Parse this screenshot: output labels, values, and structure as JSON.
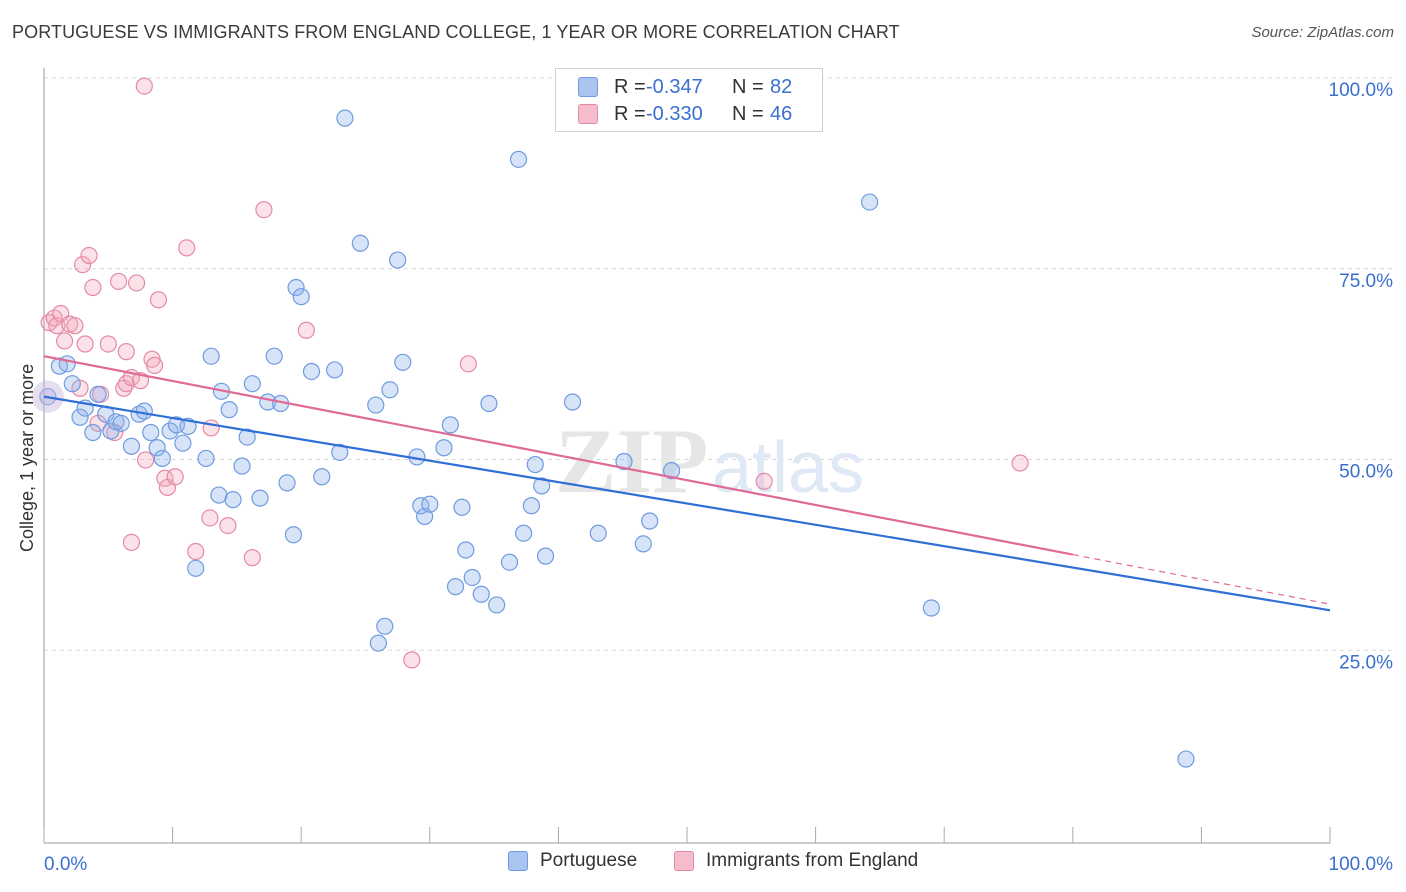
{
  "title": "PORTUGUESE VS IMMIGRANTS FROM ENGLAND COLLEGE, 1 YEAR OR MORE CORRELATION CHART",
  "source": "Source: ZipAtlas.com",
  "watermark": {
    "zip": "ZIP",
    "atlas": "atlas"
  },
  "legend_top": {
    "rows": [
      {
        "r_label": "R =",
        "r_value": "-0.347",
        "n_label": "N =",
        "n_value": "82",
        "color": "#a9c4ef",
        "stroke": "#6f9be0"
      },
      {
        "r_label": "R =",
        "r_value": "-0.330",
        "n_label": "N =",
        "n_value": "46",
        "color": "#f5bccb",
        "stroke": "#e58aa5"
      }
    ]
  },
  "legend_bottom": [
    {
      "label": "Portuguese",
      "color": "#a9c4ef",
      "stroke": "#6f9be0"
    },
    {
      "label": "Immigrants from England",
      "color": "#f5bccb",
      "stroke": "#e58aa5"
    }
  ],
  "colors": {
    "blue_fill": "rgba(140,178,236,0.35)",
    "blue_stroke": "#6f9be0",
    "blue_line": "#2f6fd6",
    "pink_fill": "rgba(244,170,190,0.35)",
    "pink_stroke": "#e58aa5",
    "pink_line": "#e06a95",
    "tick_label": "#3a6fd0",
    "grid": "#d8d8d8"
  },
  "chart_data": {
    "type": "scatter",
    "xlabel": "",
    "ylabel": "College, 1 year or more",
    "xlim": [
      0,
      100
    ],
    "ylim": [
      0,
      100
    ],
    "x_tick_labels": [
      "0.0%",
      "100.0%"
    ],
    "y_ticks": [
      {
        "value": 25,
        "label": "25.0%"
      },
      {
        "value": 50,
        "label": "50.0%"
      },
      {
        "value": 75,
        "label": "75.0%"
      },
      {
        "value": 100,
        "label": "100.0%"
      }
    ],
    "grid": "horizontal dashed",
    "series": [
      {
        "name": "Portuguese",
        "trend": {
          "x": [
            0,
            100
          ],
          "y": [
            58.5,
            30.5
          ],
          "dashed_from": null
        },
        "points": [
          [
            0.3,
            58.5
          ],
          [
            1.2,
            62.5
          ],
          [
            1.8,
            62.8
          ],
          [
            2.2,
            60.2
          ],
          [
            2.8,
            55.8
          ],
          [
            3.2,
            57.0
          ],
          [
            3.8,
            53.8
          ],
          [
            4.2,
            58.8
          ],
          [
            4.8,
            56.2
          ],
          [
            5.2,
            54.0
          ],
          [
            5.6,
            55.2
          ],
          [
            6.0,
            55.0
          ],
          [
            6.8,
            52.0
          ],
          [
            7.4,
            56.2
          ],
          [
            7.8,
            56.6
          ],
          [
            8.3,
            53.8
          ],
          [
            8.8,
            51.8
          ],
          [
            9.2,
            50.4
          ],
          [
            9.8,
            54.0
          ],
          [
            10.3,
            54.8
          ],
          [
            10.8,
            52.4
          ],
          [
            11.2,
            54.6
          ],
          [
            11.8,
            36.0
          ],
          [
            12.6,
            50.4
          ],
          [
            13.0,
            63.8
          ],
          [
            13.6,
            45.6
          ],
          [
            13.8,
            59.2
          ],
          [
            14.4,
            56.8
          ],
          [
            14.7,
            45.0
          ],
          [
            15.4,
            49.4
          ],
          [
            15.8,
            53.2
          ],
          [
            16.2,
            60.2
          ],
          [
            16.8,
            45.2
          ],
          [
            17.4,
            57.8
          ],
          [
            17.9,
            63.8
          ],
          [
            18.4,
            57.6
          ],
          [
            18.9,
            47.2
          ],
          [
            19.4,
            40.4
          ],
          [
            19.6,
            72.8
          ],
          [
            20.0,
            71.6
          ],
          [
            20.8,
            61.8
          ],
          [
            21.6,
            48.0
          ],
          [
            22.6,
            62.0
          ],
          [
            23.0,
            51.2
          ],
          [
            23.4,
            95.0
          ],
          [
            24.6,
            78.6
          ],
          [
            25.8,
            57.4
          ],
          [
            26.0,
            26.2
          ],
          [
            26.5,
            28.4
          ],
          [
            26.9,
            59.4
          ],
          [
            27.5,
            76.4
          ],
          [
            27.9,
            63.0
          ],
          [
            29.0,
            50.6
          ],
          [
            29.3,
            44.2
          ],
          [
            29.6,
            42.8
          ],
          [
            30.0,
            44.4
          ],
          [
            31.1,
            51.8
          ],
          [
            31.6,
            54.8
          ],
          [
            32.0,
            33.6
          ],
          [
            32.5,
            44.0
          ],
          [
            32.8,
            38.4
          ],
          [
            33.3,
            34.8
          ],
          [
            34.0,
            32.6
          ],
          [
            34.6,
            57.6
          ],
          [
            35.2,
            31.2
          ],
          [
            36.2,
            36.8
          ],
          [
            36.9,
            89.6
          ],
          [
            37.3,
            40.6
          ],
          [
            37.9,
            44.2
          ],
          [
            38.2,
            49.6
          ],
          [
            38.7,
            46.8
          ],
          [
            39.0,
            37.6
          ],
          [
            41.1,
            57.8
          ],
          [
            43.1,
            40.6
          ],
          [
            45.1,
            50.0
          ],
          [
            46.6,
            39.2
          ],
          [
            47.1,
            42.2
          ],
          [
            48.8,
            48.8
          ],
          [
            64.2,
            84.0
          ],
          [
            69.0,
            30.8
          ],
          [
            88.8,
            11.0
          ]
        ]
      },
      {
        "name": "Immigrants from England",
        "trend": {
          "x": [
            0,
            80
          ],
          "y": [
            63.8,
            37.8
          ],
          "dashed_to": [
            100,
            31.3
          ]
        },
        "points": [
          [
            0.4,
            68.2
          ],
          [
            0.8,
            68.8
          ],
          [
            1.0,
            67.8
          ],
          [
            1.3,
            69.4
          ],
          [
            1.6,
            65.8
          ],
          [
            2.0,
            68.0
          ],
          [
            2.4,
            67.8
          ],
          [
            2.8,
            59.6
          ],
          [
            3.0,
            75.8
          ],
          [
            3.2,
            65.4
          ],
          [
            3.5,
            77.0
          ],
          [
            3.8,
            72.8
          ],
          [
            4.2,
            55.0
          ],
          [
            4.4,
            58.8
          ],
          [
            5.0,
            65.4
          ],
          [
            5.5,
            53.8
          ],
          [
            5.8,
            73.6
          ],
          [
            6.2,
            59.6
          ],
          [
            6.4,
            60.2
          ],
          [
            6.4,
            64.4
          ],
          [
            6.8,
            61.0
          ],
          [
            6.8,
            39.4
          ],
          [
            7.2,
            73.4
          ],
          [
            7.5,
            60.6
          ],
          [
            7.8,
            99.2
          ],
          [
            7.9,
            50.2
          ],
          [
            8.4,
            63.4
          ],
          [
            8.6,
            62.6
          ],
          [
            8.9,
            71.2
          ],
          [
            9.4,
            47.8
          ],
          [
            9.6,
            46.6
          ],
          [
            10.2,
            48.0
          ],
          [
            11.1,
            78.0
          ],
          [
            11.8,
            38.2
          ],
          [
            12.9,
            42.6
          ],
          [
            13.0,
            54.4
          ],
          [
            14.3,
            41.6
          ],
          [
            16.2,
            37.4
          ],
          [
            17.1,
            83.0
          ],
          [
            20.4,
            67.2
          ],
          [
            28.6,
            24.0
          ],
          [
            33.0,
            62.8
          ],
          [
            56.0,
            47.4
          ],
          [
            75.9,
            49.8
          ]
        ]
      }
    ]
  }
}
